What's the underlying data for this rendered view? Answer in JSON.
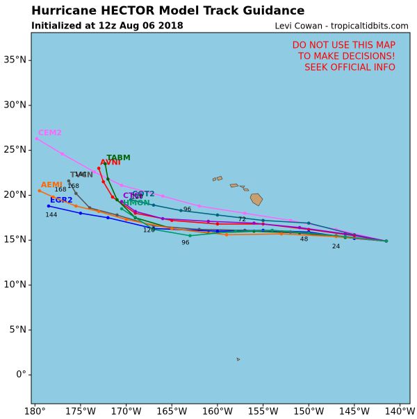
{
  "chart_data": {
    "type": "track-map",
    "title": "Hurricane HECTOR Model Track Guidance",
    "subtitle": "Initialized at 12z Aug 06 2018",
    "credit": "Levi Cowan - tropicaltidbits.com",
    "warning": [
      "DO NOT USE THIS MAP",
      "TO MAKE DECISIONS!",
      "SEEK OFFICIAL INFO"
    ],
    "xlim": [
      -180.4,
      -138.9
    ],
    "ylim": [
      -3.2,
      38.1
    ],
    "xticks": [
      {
        "value": -180,
        "label": "180°"
      },
      {
        "value": -175,
        "label": "175°W"
      },
      {
        "value": -170,
        "label": "170°W"
      },
      {
        "value": -165,
        "label": "165°W"
      },
      {
        "value": -160,
        "label": "160°W"
      },
      {
        "value": -155,
        "label": "155°W"
      },
      {
        "value": -150,
        "label": "150°W"
      },
      {
        "value": -145,
        "label": "145°W"
      },
      {
        "value": -140,
        "label": "140°W"
      }
    ],
    "yticks": [
      {
        "value": 0,
        "label": "0°"
      },
      {
        "value": 5,
        "label": "5°N"
      },
      {
        "value": 10,
        "label": "10°N"
      },
      {
        "value": 15,
        "label": "15°N"
      },
      {
        "value": 20,
        "label": "20°N"
      },
      {
        "value": 25,
        "label": "25°N"
      },
      {
        "value": 30,
        "label": "30°N"
      },
      {
        "value": 35,
        "label": "35°N"
      }
    ],
    "series": [
      {
        "name": "CEM2",
        "color": "#ff66ff",
        "x": [
          -141.5,
          -147,
          -152,
          -157,
          -162,
          -166,
          -170.5,
          -173.5,
          -177,
          -179.8
        ],
        "y": [
          14.9,
          16.2,
          17.2,
          18,
          18.8,
          19.9,
          21.1,
          22.6,
          24.6,
          26.3
        ]
      },
      {
        "name": "COT2",
        "color": "#006680",
        "x": [
          -141.5,
          -145,
          -150,
          -155,
          -160,
          -164,
          -167,
          -169.5
        ],
        "y": [
          14.9,
          15.6,
          16.9,
          17.2,
          17.8,
          18.3,
          18.9,
          19.5
        ]
      },
      {
        "name": "AVNI",
        "color": "#ff0000",
        "x": [
          -141.5,
          -145,
          -150,
          -155,
          -160,
          -165,
          -169,
          -171.5,
          -172.5,
          -173
        ],
        "y": [
          14.9,
          15.5,
          16.2,
          16.8,
          16.8,
          17.2,
          18,
          19.8,
          21.5,
          23
        ]
      },
      {
        "name": "TABM",
        "color": "#006400",
        "x": [
          -141.5,
          -146,
          -151,
          -156,
          -161,
          -165,
          -169,
          -171,
          -172,
          -172.3
        ],
        "y": [
          14.9,
          15.3,
          15.8,
          16,
          15.8,
          16.3,
          17.5,
          19.5,
          21.8,
          23.5
        ]
      },
      {
        "name": "TVCN",
        "color": "#555555",
        "x": [
          -141.5,
          -147,
          -152,
          -157,
          -162,
          -167,
          -171,
          -174,
          -175.5,
          -176.3
        ],
        "y": [
          14.9,
          15.5,
          15.9,
          16.1,
          16.2,
          16.6,
          17.8,
          18.6,
          20.2,
          21.6
        ]
      },
      {
        "name": "EGR2",
        "color": "#0000ff",
        "x": [
          -141.5,
          -145,
          -150,
          -155,
          -160,
          -167,
          -172,
          -175,
          -178.5
        ],
        "y": [
          14.9,
          15.2,
          15.9,
          16.1,
          16,
          16.3,
          17.5,
          18,
          18.8
        ]
      },
      {
        "name": "AEMI",
        "color": "#ff6600",
        "x": [
          -141.5,
          -147,
          -153,
          -159,
          -165,
          -170,
          -173,
          -175.5,
          -178,
          -179.5
        ],
        "y": [
          14.9,
          15.4,
          15.7,
          15.6,
          16.3,
          17.3,
          18.2,
          18.8,
          19.8,
          20.5
        ]
      },
      {
        "name": "CTCI",
        "color": "#9900cc",
        "x": [
          -141.5,
          -146,
          -151,
          -156,
          -161,
          -166,
          -169,
          -170.5
        ],
        "y": [
          14.9,
          15.7,
          16.4,
          16.9,
          17.1,
          17.4,
          18.2,
          19.3
        ]
      },
      {
        "name": "HMON",
        "color": "#009966",
        "x": [
          -141.5,
          -146,
          -150,
          -154,
          -158,
          -163,
          -167,
          -170.5
        ],
        "y": [
          14.9,
          15.4,
          15.8,
          16.1,
          16.0,
          15.5,
          16.2,
          18.5
        ]
      }
    ],
    "annotations": [
      {
        "text": "24",
        "x": -147,
        "y": 14.3
      },
      {
        "text": "48",
        "x": -150.5,
        "y": 15.1
      },
      {
        "text": "72",
        "x": -157.3,
        "y": 17.3
      },
      {
        "text": "96",
        "x": -163.3,
        "y": 18.4
      },
      {
        "text": "96",
        "x": -163.5,
        "y": 14.7
      },
      {
        "text": "120",
        "x": -168.8,
        "y": 19.8
      },
      {
        "text": "120",
        "x": -167.5,
        "y": 16.1
      },
      {
        "text": "144",
        "x": -175,
        "y": 22.3
      },
      {
        "text": "144",
        "x": -178.2,
        "y": 17.8
      },
      {
        "text": "168",
        "x": -175.8,
        "y": 21.0
      },
      {
        "text": "168",
        "x": -177.2,
        "y": 20.6
      }
    ]
  }
}
